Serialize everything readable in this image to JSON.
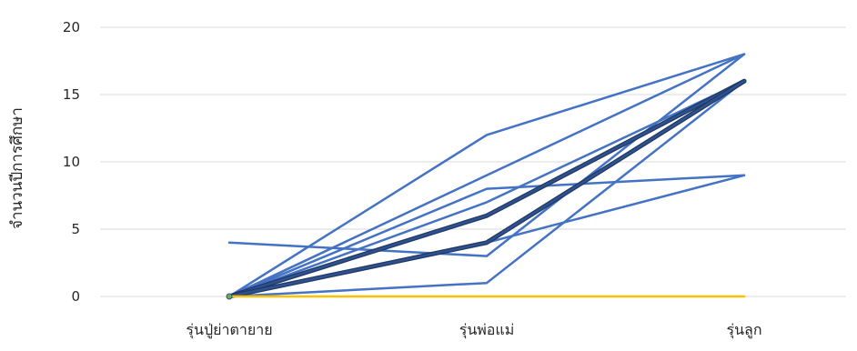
{
  "chart_data": {
    "type": "line",
    "title": "",
    "xlabel": "",
    "ylabel": "จำนวนปีการศึกษา",
    "categories": [
      "รุ่นปู่ย่าตายาย",
      "รุ่นพ่อแม่",
      "รุ่นลูก"
    ],
    "ylim": [
      0,
      20
    ],
    "yticks": [
      0,
      5,
      10,
      15,
      20
    ],
    "grid": true,
    "legend": "none",
    "colors": {
      "series_blue": "#4472C4",
      "series_dark": "#2F528F",
      "series_gold": "#FFC000",
      "grid": "#D9D9D9",
      "text": "#262626"
    },
    "series": [
      {
        "values": [
          4,
          3,
          18
        ],
        "color": "#4472C4"
      },
      {
        "values": [
          0,
          12,
          18
        ],
        "color": "#4472C4"
      },
      {
        "values": [
          0,
          9,
          18
        ],
        "color": "#4472C4"
      },
      {
        "values": [
          0,
          8,
          9
        ],
        "color": "#4472C4"
      },
      {
        "values": [
          0,
          7,
          16
        ],
        "color": "#4472C4"
      },
      {
        "values": [
          0,
          4,
          9
        ],
        "color": "#4472C4"
      },
      {
        "values": [
          0,
          1,
          16
        ],
        "color": "#4472C4"
      },
      {
        "values": [
          0,
          6,
          16
        ],
        "color": "#2F528F"
      },
      {
        "values": [
          0,
          4,
          16
        ],
        "color": "#2F528F"
      },
      {
        "values": [
          0,
          0,
          0
        ],
        "color": "#FFC000"
      }
    ]
  }
}
